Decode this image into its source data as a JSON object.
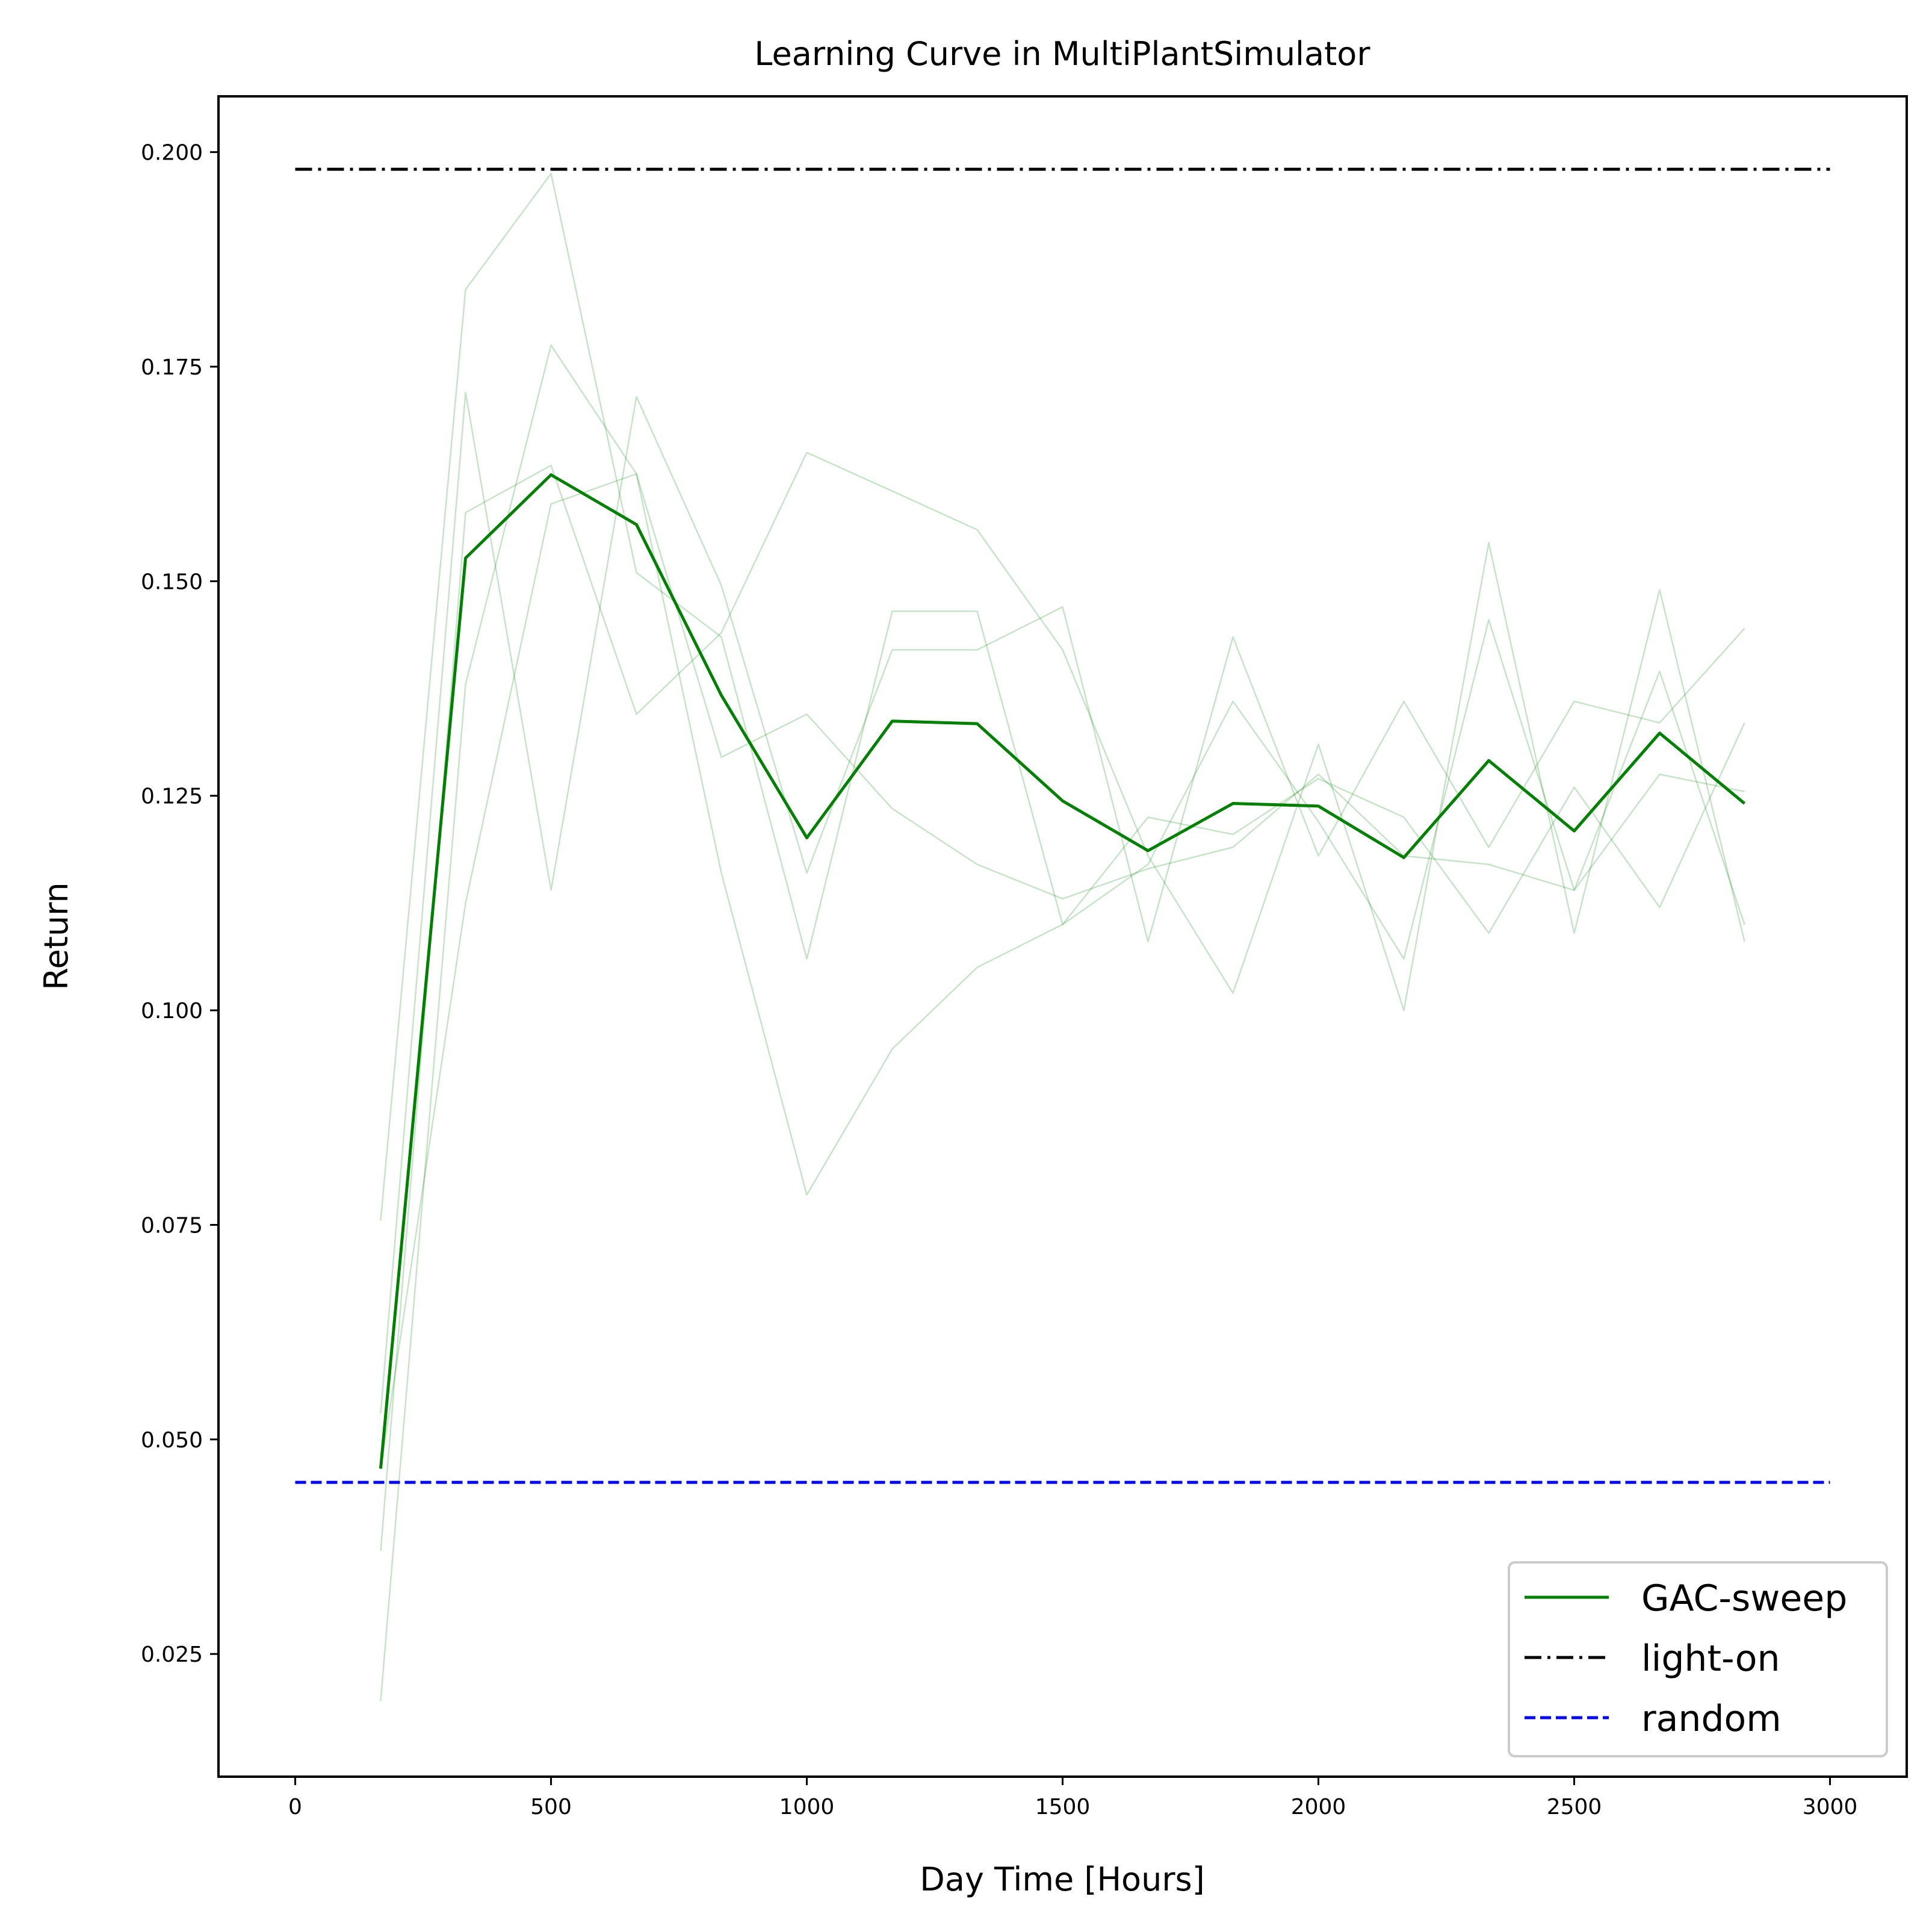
{
  "chart_data": {
    "type": "line",
    "title": "Learning Curve in MultiPlantSimulator",
    "xlabel": "Day Time [Hours]",
    "ylabel": "Return",
    "xlim": [
      -150,
      3150
    ],
    "ylim": [
      0.0107,
      0.2065
    ],
    "xticks": [
      0,
      500,
      1000,
      1500,
      2000,
      2500,
      3000
    ],
    "xtick_labels": [
      "0",
      "500",
      "1000",
      "1500",
      "2000",
      "2500",
      "3000"
    ],
    "yticks": [
      0.025,
      0.05,
      0.075,
      0.1,
      0.125,
      0.15,
      0.175,
      0.2
    ],
    "ytick_labels": [
      "0.025",
      "0.050",
      "0.075",
      "0.100",
      "0.125",
      "0.150",
      "0.175",
      "0.200"
    ],
    "grid": false,
    "legend_position": "lower-right",
    "x": [
      167,
      333,
      500,
      667,
      833,
      1000,
      1167,
      1333,
      1500,
      1667,
      1833,
      2000,
      2167,
      2333,
      2500,
      2667,
      2833
    ],
    "series": [
      {
        "name": "GAC-sweep",
        "style": "solid",
        "color": "#008000",
        "values": [
          0.0466,
          0.1527,
          0.1624,
          0.1566,
          0.1367,
          0.1201,
          0.1337,
          0.1334,
          0.1244,
          0.1186,
          0.1241,
          0.1238,
          0.1178,
          0.1291,
          0.1209,
          0.1323,
          0.1241
        ]
      },
      {
        "name": "light-on",
        "style": "dashdot",
        "color": "#000000",
        "x": [
          0,
          3000
        ],
        "values": [
          0.198,
          0.198
        ]
      },
      {
        "name": "random",
        "style": "dashed",
        "color": "#0000ff",
        "x": [
          0,
          3000
        ],
        "values": [
          0.045,
          0.045
        ]
      }
    ],
    "runs": [
      {
        "color": "#008000",
        "values": [
          0.0755,
          0.184,
          0.1975,
          0.151,
          0.1435,
          0.106,
          0.1465,
          0.1465,
          0.11,
          0.1225,
          0.1205,
          0.127,
          0.1225,
          0.109,
          0.126,
          0.112,
          0.1335
        ]
      },
      {
        "color": "#008000",
        "values": [
          0.053,
          0.172,
          0.114,
          0.1715,
          0.1495,
          0.116,
          0.142,
          0.142,
          0.147,
          0.108,
          0.1435,
          0.118,
          0.136,
          0.119,
          0.136,
          0.1335,
          0.1445
        ]
      },
      {
        "color": "#008000",
        "values": [
          0.037,
          0.158,
          0.1635,
          0.1345,
          0.144,
          0.165,
          0.1605,
          0.156,
          0.142,
          0.118,
          0.102,
          0.131,
          0.1,
          0.1545,
          0.109,
          0.149,
          0.108
        ]
      },
      {
        "color": "#008000",
        "values": [
          0.0195,
          0.138,
          0.1775,
          0.1625,
          0.116,
          0.0785,
          0.0955,
          0.105,
          0.11,
          0.117,
          0.136,
          0.122,
          0.106,
          0.1455,
          0.114,
          0.1395,
          0.11
        ]
      },
      {
        "color": "#008000",
        "values": [
          0.0465,
          0.1125,
          0.159,
          0.1625,
          0.1295,
          0.1345,
          0.1235,
          0.117,
          0.113,
          0.1165,
          0.119,
          0.1275,
          0.118,
          0.117,
          0.114,
          0.1275,
          0.1255
        ]
      }
    ]
  }
}
